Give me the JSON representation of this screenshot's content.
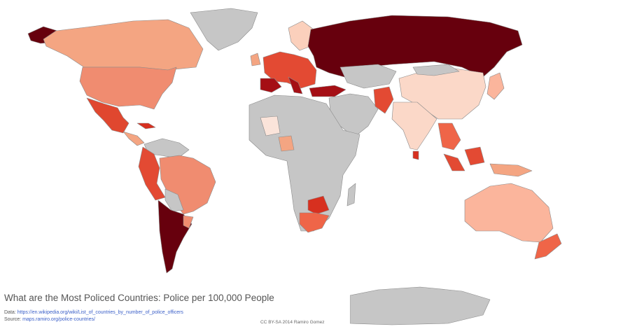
{
  "title": "What are the Most Policed Countries: Police per 100,000 People",
  "data_label": "Data:",
  "data_url": "https://en.wikipedia.org/wiki/List_of_countries_by_number_of_police_officers",
  "source_label": "Source:",
  "source_url": "maps.ramiro.org/police-countries/",
  "credit": "CC BY-SA 2014 Ramiro Gomez"
}
